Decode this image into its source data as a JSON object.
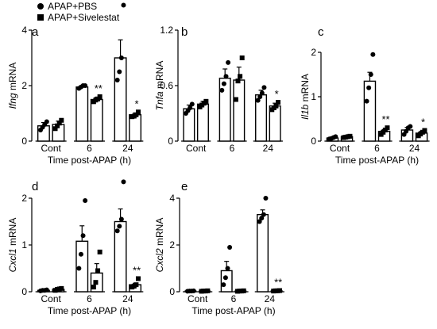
{
  "legend": {
    "entries": [
      {
        "label": "APAP+PBS",
        "marker": "circle"
      },
      {
        "label": "APAP+Sivelestat",
        "marker": "square"
      }
    ]
  },
  "colors": {
    "ink": "#000000",
    "bar_fill": "#ffffff"
  },
  "chart_data": [
    {
      "type": "bar",
      "panel": "a",
      "ylabel_italic": "Ifng",
      "ylabel_rest": " mRNA",
      "ylim": [
        0,
        4
      ],
      "yticks": [
        0,
        2,
        4
      ],
      "categories": [
        "Cont",
        "6",
        "24"
      ],
      "xlabel": "Time post-APAP (h)",
      "series": [
        {
          "name": "APAP+PBS",
          "values": [
            0.55,
            1.95,
            3.0
          ],
          "errors": [
            0.12,
            0.05,
            0.65
          ],
          "points": [
            [
              0.4,
              0.5,
              0.6,
              0.7
            ],
            [
              1.9,
              1.95,
              2.0,
              2.0
            ],
            [
              2.2,
              2.5,
              3.0,
              4.9
            ]
          ]
        },
        {
          "name": "APAP+Sivelestat",
          "values": [
            0.6,
            1.5,
            0.95
          ],
          "errors": [
            0.12,
            0.08,
            0.06
          ],
          "points": [
            [
              0.45,
              0.55,
              0.65,
              0.75
            ],
            [
              1.42,
              1.48,
              1.52,
              1.6
            ],
            [
              0.88,
              0.9,
              0.95,
              1.05
            ]
          ]
        }
      ],
      "annotations": [
        {
          "category_index": 1,
          "text": "**"
        },
        {
          "category_index": 2,
          "text": "*"
        }
      ]
    },
    {
      "type": "bar",
      "panel": "b",
      "ylabel_italic": "Tnfa",
      "ylabel_rest": " mRNA",
      "ylim": [
        0,
        1.2
      ],
      "yticks": [
        0,
        0.6,
        1.2
      ],
      "categories": [
        "Cont",
        "6",
        "24"
      ],
      "xlabel": "",
      "series": [
        {
          "name": "APAP+PBS",
          "values": [
            0.35,
            0.68,
            0.5
          ],
          "errors": [
            0.04,
            0.1,
            0.05
          ],
          "points": [
            [
              0.3,
              0.33,
              0.36,
              0.4
            ],
            [
              0.55,
              0.62,
              0.7,
              0.85
            ],
            [
              0.44,
              0.48,
              0.52,
              0.58
            ]
          ]
        },
        {
          "name": "APAP+Sivelestat",
          "values": [
            0.4,
            0.66,
            0.38
          ],
          "errors": [
            0.03,
            0.14,
            0.03
          ],
          "points": [
            [
              0.37,
              0.39,
              0.41,
              0.43
            ],
            [
              0.45,
              0.65,
              0.7,
              0.9
            ],
            [
              0.34,
              0.36,
              0.38,
              0.42
            ]
          ]
        }
      ],
      "annotations": [
        {
          "category_index": 2,
          "text": "*"
        }
      ]
    },
    {
      "type": "bar",
      "panel": "c",
      "ylabel_italic": "Il1b",
      "ylabel_rest": " mRNA",
      "ylim": [
        0,
        2
      ],
      "yticks": [
        0,
        1,
        2
      ],
      "categories": [
        "Cont",
        "6",
        "24"
      ],
      "xlabel": "Time post-APAP (h)",
      "series": [
        {
          "name": "APAP+PBS",
          "values": [
            0.07,
            1.35,
            0.25
          ],
          "errors": [
            0.02,
            0.2,
            0.06
          ],
          "points": [
            [
              0.05,
              0.06,
              0.08,
              0.1
            ],
            [
              0.9,
              1.2,
              1.5,
              1.95
            ],
            [
              0.15,
              0.22,
              0.3,
              0.33
            ]
          ]
        },
        {
          "name": "APAP+Sivelestat",
          "values": [
            0.1,
            0.22,
            0.18
          ],
          "errors": [
            0.01,
            0.04,
            0.04
          ],
          "points": [
            [
              0.08,
              0.09,
              0.1,
              0.11
            ],
            [
              0.15,
              0.2,
              0.25,
              0.3
            ],
            [
              0.12,
              0.16,
              0.2,
              0.24
            ]
          ]
        }
      ],
      "annotations": [
        {
          "category_index": 1,
          "text": "**"
        },
        {
          "category_index": 2,
          "text": "*"
        }
      ]
    },
    {
      "type": "bar",
      "panel": "d",
      "ylabel_italic": "Cxcl1",
      "ylabel_rest": " mRNA",
      "ylim": [
        0,
        2
      ],
      "yticks": [
        0,
        1,
        2
      ],
      "categories": [
        "Cont",
        "6",
        "24"
      ],
      "xlabel": "Time post-APAP (h)",
      "series": [
        {
          "name": "APAP+PBS",
          "values": [
            0.03,
            1.08,
            1.5
          ],
          "errors": [
            0.01,
            0.33,
            0.27
          ],
          "points": [
            [
              0.02,
              0.03,
              0.03,
              0.04
            ],
            [
              0.5,
              0.8,
              1.2,
              1.95
            ],
            [
              1.3,
              1.4,
              1.55,
              2.35
            ]
          ]
        },
        {
          "name": "APAP+Sivelestat",
          "values": [
            0.05,
            0.4,
            0.15
          ],
          "errors": [
            0.01,
            0.2,
            0.03
          ],
          "points": [
            [
              0.03,
              0.05,
              0.06,
              0.07
            ],
            [
              0.1,
              0.2,
              0.45,
              0.85
            ],
            [
              0.1,
              0.12,
              0.15,
              0.28
            ]
          ]
        }
      ],
      "annotations": [
        {
          "category_index": 2,
          "text": "**"
        }
      ]
    },
    {
      "type": "bar",
      "panel": "e",
      "ylabel_italic": "Cxcl2",
      "ylabel_rest": " mRNA",
      "ylim": [
        0,
        4
      ],
      "yticks": [
        0,
        2,
        4
      ],
      "categories": [
        "Cont",
        "6",
        "24"
      ],
      "xlabel": "Time post-APAP (h)",
      "series": [
        {
          "name": "APAP+PBS",
          "values": [
            0.03,
            0.9,
            3.3
          ],
          "errors": [
            0.01,
            0.4,
            0.2
          ],
          "points": [
            [
              0.02,
              0.03,
              0.03,
              0.04
            ],
            [
              0.3,
              0.6,
              1.0,
              1.9
            ],
            [
              3.0,
              3.15,
              3.3,
              4.0
            ]
          ]
        },
        {
          "name": "APAP+Sivelestat",
          "values": [
            0.03,
            0.03,
            0.04
          ],
          "errors": [
            0.01,
            0.01,
            0.01
          ],
          "points": [
            [
              0.02,
              0.03,
              0.03,
              0.04
            ],
            [
              0.02,
              0.03,
              0.03,
              0.04
            ],
            [
              0.03,
              0.04,
              0.04,
              0.05
            ]
          ]
        }
      ],
      "annotations": [
        {
          "category_index": 2,
          "text": "**"
        }
      ]
    }
  ]
}
